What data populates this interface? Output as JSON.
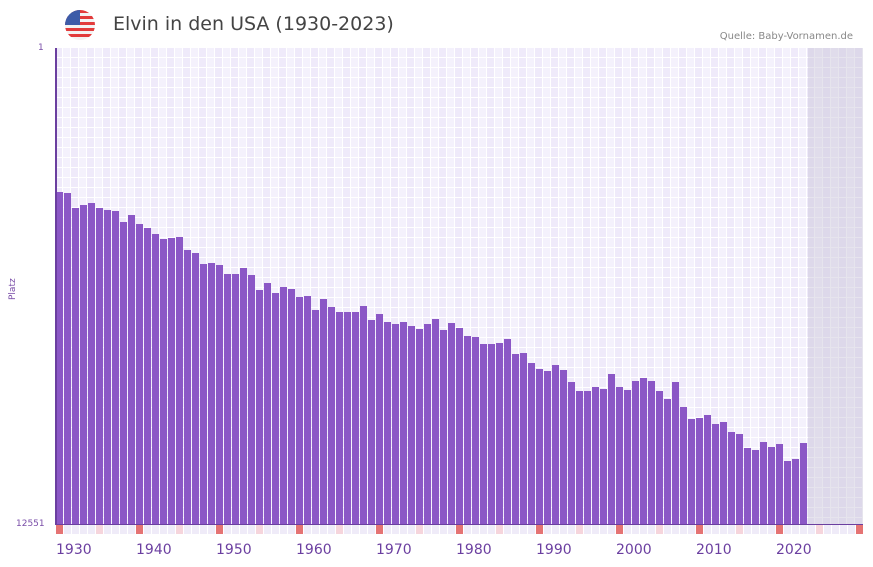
{
  "header": {
    "title": "Elvin in den USA (1930-2023)",
    "flag_icon": "us-flag-icon",
    "source": "Quelle: Baby-Vornamen.de"
  },
  "axis": {
    "y_top_label": "1",
    "y_bottom_label": "12551",
    "y_title": "Platz",
    "x_labels": [
      "1930",
      "1940",
      "1950",
      "1960",
      "1970",
      "1980",
      "1990",
      "2000",
      "2010",
      "2020"
    ]
  },
  "colors": {
    "bar": "#8b57c6",
    "axis": "#6b3fa0",
    "decade_marker": "#e57373",
    "half_decade_marker": "#f6d5dc",
    "year_marker": "#efebf8"
  },
  "chart_data": {
    "type": "bar",
    "title": "Elvin in den USA (1930-2023)",
    "xlabel": "",
    "ylabel": "Platz",
    "ylim": [
      12551,
      1
    ],
    "y_inverted": true,
    "x_range": [
      1930,
      2030
    ],
    "grid": true,
    "categories": [
      1930,
      1931,
      1932,
      1933,
      1934,
      1935,
      1936,
      1937,
      1938,
      1939,
      1940,
      1941,
      1942,
      1943,
      1944,
      1945,
      1946,
      1947,
      1948,
      1949,
      1950,
      1951,
      1952,
      1953,
      1954,
      1955,
      1956,
      1957,
      1958,
      1959,
      1960,
      1961,
      1962,
      1963,
      1964,
      1965,
      1966,
      1967,
      1968,
      1969,
      1970,
      1971,
      1972,
      1973,
      1974,
      1975,
      1976,
      1977,
      1978,
      1979,
      1980,
      1981,
      1982,
      1983,
      1984,
      1985,
      1986,
      1987,
      1988,
      1989,
      1990,
      1991,
      1992,
      1993,
      1994,
      1995,
      1996,
      1997,
      1998,
      1999,
      2000,
      2001,
      2002,
      2003,
      2004,
      2005,
      2006,
      2007,
      2008,
      2009,
      2010,
      2011,
      2012,
      2013,
      2014,
      2015,
      2016,
      2017,
      2018,
      2019,
      2020,
      2021,
      2022,
      2023
    ],
    "values": [
      3797,
      3823,
      4219,
      4140,
      4087,
      4219,
      4272,
      4298,
      4588,
      4404,
      4641,
      4746,
      4904,
      5036,
      5009,
      4983,
      5326,
      5405,
      5695,
      5669,
      5721,
      5958,
      5958,
      5800,
      5985,
      6380,
      6195,
      6459,
      6301,
      6354,
      6565,
      6538,
      6907,
      6618,
      6829,
      6960,
      6960,
      6960,
      6802,
      7171,
      7013,
      7224,
      7277,
      7224,
      7330,
      7409,
      7277,
      7145,
      7435,
      7251,
      7382,
      7593,
      7619,
      7804,
      7804,
      7777,
      7672,
      8067,
      8040,
      8304,
      8462,
      8515,
      8357,
      8489,
      8805,
      9042,
      9042,
      8937,
      8990,
      8594,
      8937,
      9016,
      8779,
      8700,
      8779,
      9042,
      9253,
      8805,
      9464,
      9780,
      9754,
      9675,
      9912,
      9859,
      10123,
      10176,
      10545,
      10597,
      10387,
      10519,
      10440,
      10888,
      10835,
      10413
    ]
  }
}
